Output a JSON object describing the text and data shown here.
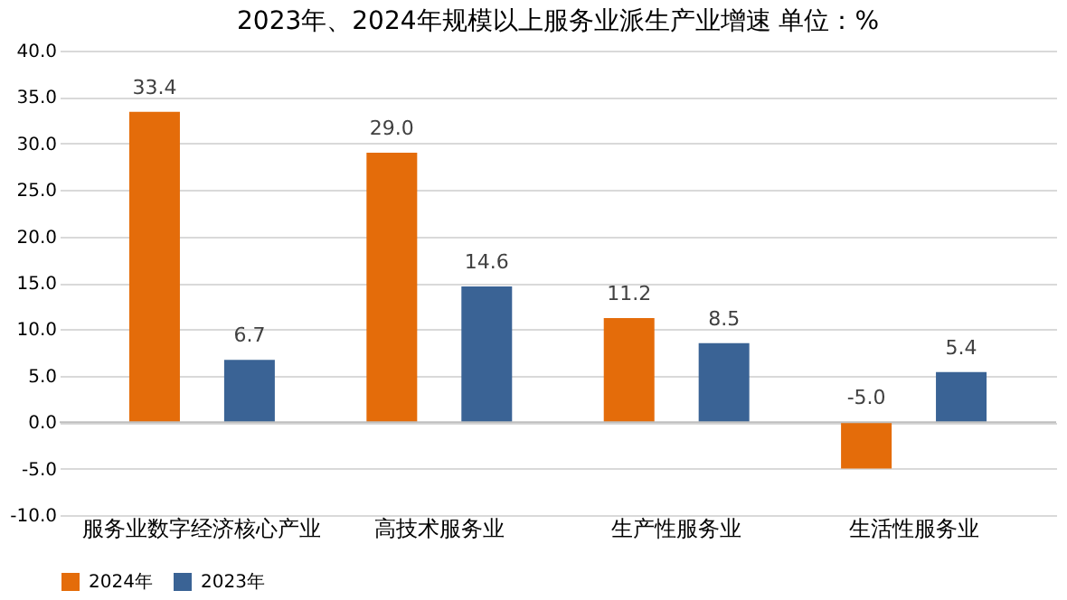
{
  "chart_data": {
    "type": "bar",
    "title": "2023年、2024年规模以上服务业派生产业增速    单位：%",
    "categories": [
      "服务业数字经济核心产业",
      "高技术服务业",
      "生产性服务业",
      "生活性服务业"
    ],
    "series": [
      {
        "name": "2024年",
        "color": "#e46c0a",
        "values": [
          33.4,
          29.0,
          11.2,
          -5.0
        ],
        "value_labels": [
          "33.4",
          "29.0",
          "11.2",
          "-5.0"
        ]
      },
      {
        "name": "2023年",
        "color": "#3a6395",
        "values": [
          6.7,
          14.6,
          8.5,
          5.4
        ],
        "value_labels": [
          "6.7",
          "14.6",
          "8.5",
          "5.4"
        ]
      }
    ],
    "ylim": [
      -10,
      40
    ],
    "yticks": [
      {
        "value": -10,
        "label": "-10.0"
      },
      {
        "value": -5,
        "label": "-5.0"
      },
      {
        "value": 0,
        "label": "0.0"
      },
      {
        "value": 5,
        "label": "5.0"
      },
      {
        "value": 10,
        "label": "10.0"
      },
      {
        "value": 15,
        "label": "15.0"
      },
      {
        "value": 20,
        "label": "20.0"
      },
      {
        "value": 25,
        "label": "25.0"
      },
      {
        "value": 30,
        "label": "30.0"
      },
      {
        "value": 35,
        "label": "35.0"
      },
      {
        "value": 40,
        "label": "40.0"
      }
    ],
    "grid": "y",
    "legend": "bottom"
  }
}
